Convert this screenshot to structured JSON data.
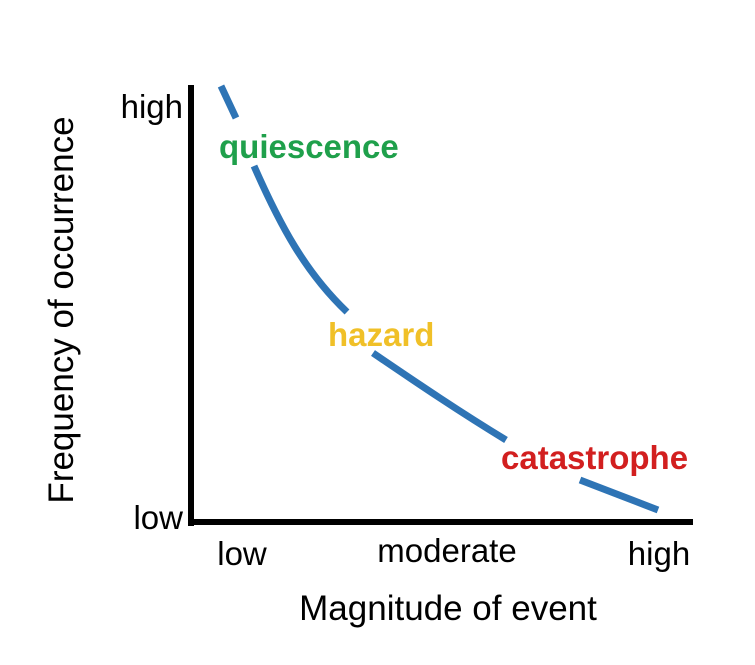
{
  "diagram": {
    "y_axis_title": "Frequency of occurrence",
    "x_axis_title": "Magnitude of event",
    "y_ticks": {
      "high": "high",
      "low": "low"
    },
    "x_ticks": {
      "low": "low",
      "moderate": "moderate",
      "high": "high"
    },
    "zones": [
      {
        "label": "quiescence",
        "color": "#1fa04b"
      },
      {
        "label": "hazard",
        "color": "#f0c028"
      },
      {
        "label": "catastrophe",
        "color": "#d21f1f"
      }
    ],
    "curve_color": "#2e74b5",
    "axis_color": "#000000"
  }
}
